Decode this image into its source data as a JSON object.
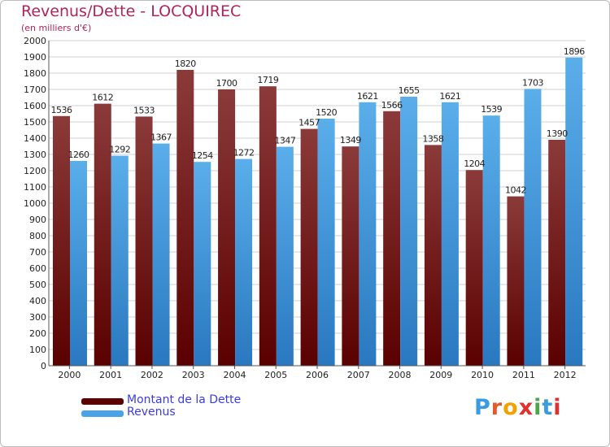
{
  "title": "Revenus/Dette - LOCQUIREC",
  "subtitle": "(en milliers d'€)",
  "legend": [
    {
      "name": "Montant de la Dette",
      "color": "#7a1010"
    },
    {
      "name": "Revenus",
      "color": "#4aa3e6"
    }
  ],
  "logo": {
    "letters": [
      "P",
      "r",
      "o",
      "x",
      "i",
      "t",
      "i"
    ],
    "colors": [
      "#3b9be0",
      "#e05a2a",
      "#f2a100",
      "#e0302f",
      "#4aa84a",
      "#3b9be0",
      "#e0302f"
    ]
  },
  "chart_data": {
    "type": "bar",
    "categories": [
      "2000",
      "2001",
      "2002",
      "2003",
      "2004",
      "2005",
      "2006",
      "2007",
      "2008",
      "2009",
      "2010",
      "2011",
      "2012"
    ],
    "series": [
      {
        "name": "Montant de la Dette",
        "values": [
          1536,
          1612,
          1533,
          1820,
          1700,
          1719,
          1457,
          1349,
          1566,
          1358,
          1204,
          1042,
          1390
        ],
        "labels": [
          "1536",
          "1612",
          "1533",
          "1820",
          "1700",
          "1719",
          "1457",
          "1349",
          "1566",
          "1358",
          "1204",
          "1042",
          "1390"
        ]
      },
      {
        "name": "Revenus",
        "values": [
          1260,
          1292,
          1367,
          1254,
          1272,
          1347,
          1520,
          1621,
          1655,
          1621,
          1539,
          1703,
          1896
        ],
        "labels": [
          "1260",
          "1292",
          "1367",
          "1254",
          "1272",
          "1347",
          "1520",
          "1621",
          "1655",
          "1621",
          "1539",
          "1703",
          "1896"
        ]
      }
    ],
    "ylim": [
      0,
      2000
    ],
    "yticks": [
      "0",
      "100",
      "200",
      "300",
      "400",
      "500",
      "600",
      "700",
      "800",
      "900",
      "1000",
      "1100",
      "1200",
      "1300",
      "1400",
      "1500",
      "1600",
      "1700",
      "1800",
      "1900",
      "2000"
    ],
    "grid": true,
    "legend_position": "bottom-left"
  }
}
